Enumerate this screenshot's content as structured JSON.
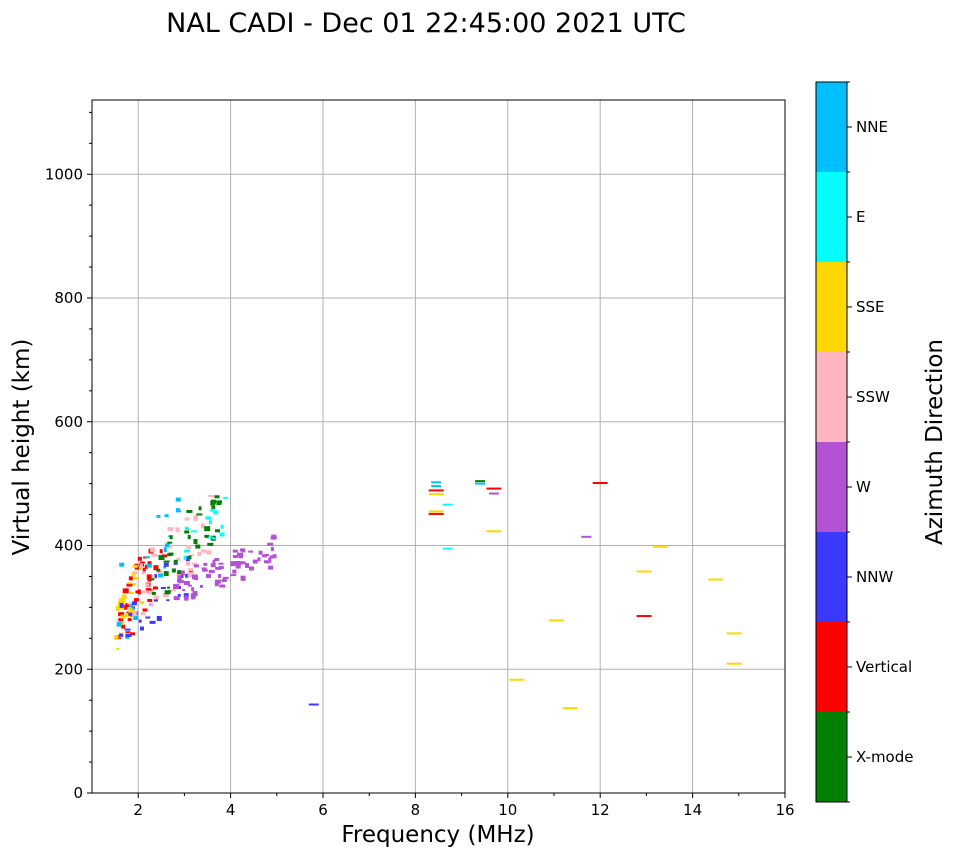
{
  "chart_data": {
    "type": "scatter",
    "title": "NAL CADI - Dec 01 22:45:00 2021 UTC",
    "xlabel": "Frequency (MHz)",
    "ylabel": "Virtual height (km)",
    "xlim": [
      1,
      16
    ],
    "ylim": [
      0,
      1120
    ],
    "xticks": [
      2,
      4,
      6,
      8,
      10,
      12,
      14,
      16
    ],
    "yticks": [
      0,
      200,
      400,
      600,
      800,
      1000
    ],
    "grid": true,
    "colorbar": {
      "label": "Azimuth Direction",
      "categories": [
        {
          "name": "X-mode",
          "color": "#008000"
        },
        {
          "name": "Vertical",
          "color": "#ff0000"
        },
        {
          "name": "NNW",
          "color": "#3a3aff"
        },
        {
          "name": "W",
          "color": "#b452d6"
        },
        {
          "name": "SSW",
          "color": "#ffb6c1"
        },
        {
          "name": "SSE",
          "color": "#ffd700"
        },
        {
          "name": "E",
          "color": "#00ffff"
        },
        {
          "name": "NNE",
          "color": "#00bfff"
        }
      ]
    },
    "dense_clusters": [
      {
        "name": "Vertical",
        "x": [
          1.5,
          2.6
        ],
        "y": [
          240,
          440
        ],
        "count": 40
      },
      {
        "name": "SSE",
        "x": [
          1.5,
          2.1
        ],
        "y": [
          232,
          390
        ],
        "count": 24
      },
      {
        "name": "NNE",
        "x": [
          1.5,
          2.9
        ],
        "y": [
          250,
          500
        ],
        "count": 18
      },
      {
        "name": "NNW",
        "x": [
          1.6,
          3.2
        ],
        "y": [
          250,
          400
        ],
        "count": 28
      },
      {
        "name": "SSW",
        "x": [
          1.8,
          3.6
        ],
        "y": [
          290,
          480
        ],
        "count": 40
      },
      {
        "name": "X-mode",
        "x": [
          2.3,
          3.8
        ],
        "y": [
          320,
          505
        ],
        "count": 35
      },
      {
        "name": "E",
        "x": [
          3.0,
          4.2
        ],
        "y": [
          380,
          500
        ],
        "count": 14
      },
      {
        "name": "W",
        "x": [
          2.8,
          5.0
        ],
        "y": [
          315,
          415
        ],
        "count": 75
      }
    ],
    "isolated_points": [
      {
        "name": "NNW",
        "x": 5.8,
        "y": 143
      },
      {
        "name": "NNE",
        "x": 8.45,
        "y": 502
      },
      {
        "name": "NNE",
        "x": 8.45,
        "y": 496
      },
      {
        "name": "Vertical",
        "x": 8.45,
        "y": 489
      },
      {
        "name": "SSE",
        "x": 8.45,
        "y": 483
      },
      {
        "name": "E",
        "x": 8.7,
        "y": 466
      },
      {
        "name": "SSE",
        "x": 8.45,
        "y": 455
      },
      {
        "name": "Vertical",
        "x": 8.45,
        "y": 451
      },
      {
        "name": "E",
        "x": 8.7,
        "y": 395
      },
      {
        "name": "X-mode",
        "x": 9.4,
        "y": 504
      },
      {
        "name": "NNE",
        "x": 9.4,
        "y": 500
      },
      {
        "name": "Vertical",
        "x": 9.7,
        "y": 492
      },
      {
        "name": "W",
        "x": 9.7,
        "y": 484
      },
      {
        "name": "SSE",
        "x": 9.7,
        "y": 423
      },
      {
        "name": "SSE",
        "x": 10.2,
        "y": 183
      },
      {
        "name": "SSE",
        "x": 11.05,
        "y": 279
      },
      {
        "name": "SSE",
        "x": 11.35,
        "y": 137
      },
      {
        "name": "Vertical",
        "x": 12.0,
        "y": 501
      },
      {
        "name": "W",
        "x": 11.7,
        "y": 414
      },
      {
        "name": "SSE",
        "x": 13.3,
        "y": 398
      },
      {
        "name": "SSE",
        "x": 12.95,
        "y": 358
      },
      {
        "name": "Vertical",
        "x": 12.95,
        "y": 286
      },
      {
        "name": "SSE",
        "x": 14.5,
        "y": 345
      },
      {
        "name": "SSE",
        "x": 14.9,
        "y": 258
      },
      {
        "name": "SSE",
        "x": 14.9,
        "y": 209
      }
    ]
  }
}
